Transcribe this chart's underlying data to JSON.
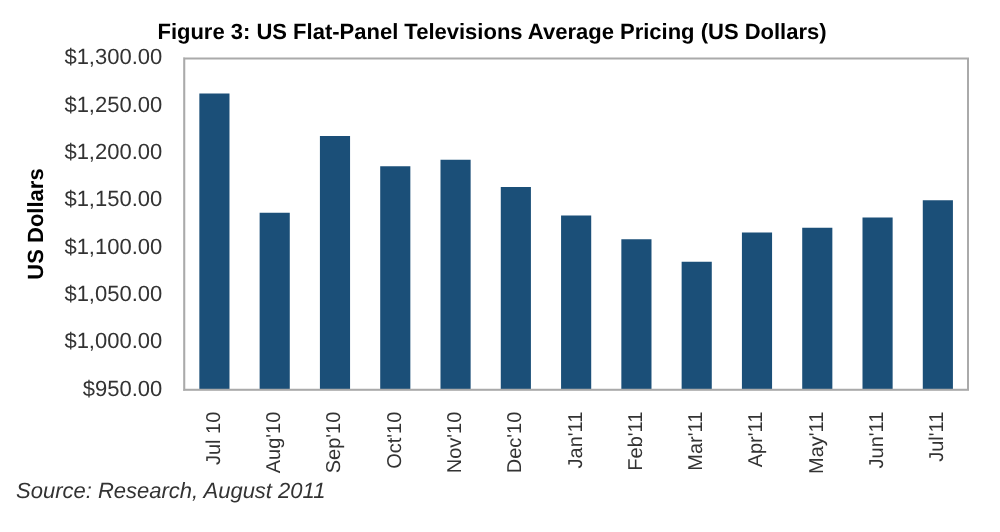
{
  "chart_data": {
    "type": "bar",
    "title": "Figure 3: US Flat-Panel Televisions Average Pricing (US Dollars)",
    "ylabel": "US Dollars",
    "categories": [
      "Jul 10",
      "Aug'10",
      "Sep'10",
      "Oct'10",
      "Nov'10",
      "Dec'10",
      "Jan'11",
      "Feb'11",
      "Mar'11",
      "Apr'11",
      "May'11",
      "Jun'11",
      "Jul'11"
    ],
    "values": [
      1263,
      1137,
      1218,
      1186,
      1193,
      1164,
      1134,
      1109,
      1085,
      1116,
      1121,
      1132,
      1150
    ],
    "color": "#1b4f78",
    "ylim": [
      950,
      1300
    ],
    "yticks": [
      {
        "value": 950,
        "label": "$950.00"
      },
      {
        "value": 1000,
        "label": "$1,000.00"
      },
      {
        "value": 1050,
        "label": "$1,050.00"
      },
      {
        "value": 1100,
        "label": "$1,100.00"
      },
      {
        "value": 1150,
        "label": "$1,150.00"
      },
      {
        "value": 1200,
        "label": "$1,200.00"
      },
      {
        "value": 1250,
        "label": "$1,250.00"
      },
      {
        "value": 1300,
        "label": "$1,300.00"
      }
    ],
    "grid": false,
    "legend": false,
    "annotations": [
      "Source: Research, August 2011"
    ]
  }
}
